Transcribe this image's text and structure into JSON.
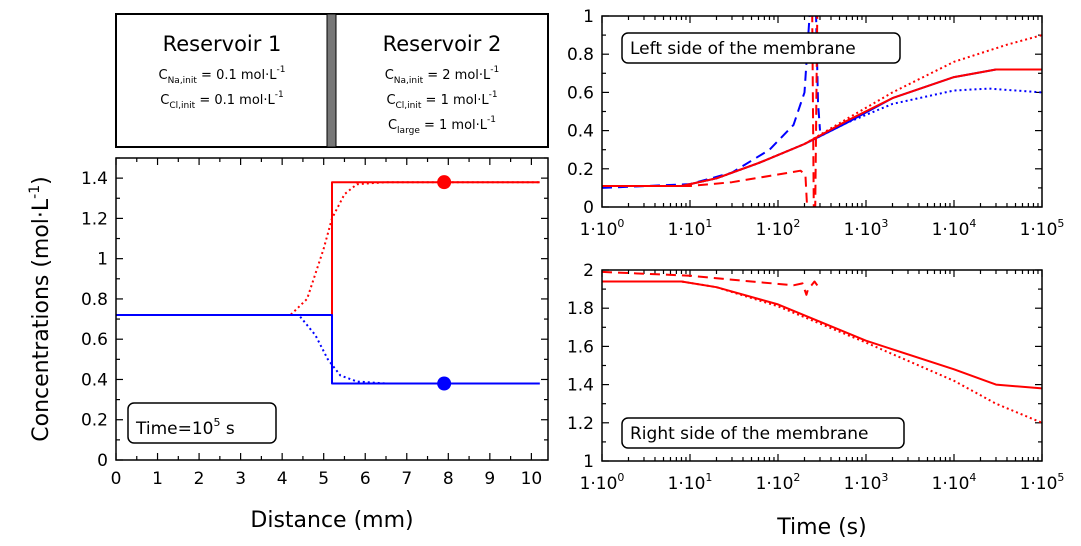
{
  "reservoir1": {
    "title": "Reservoir 1",
    "lines": [
      {
        "base": "C",
        "sub": "Na,init",
        "rest": " = 0.1 mol·L",
        "sup": "-1"
      },
      {
        "base": "C",
        "sub": "Cl,init",
        "rest": " = 0.1 mol·L",
        "sup": "-1"
      }
    ]
  },
  "reservoir2": {
    "title": "Reservoir 2",
    "lines": [
      {
        "base": "C",
        "sub": "Na,init",
        "rest": " = 2 mol·L",
        "sup": "-1"
      },
      {
        "base": "C",
        "sub": "Cl,init",
        "rest": " = 1 mol·L",
        "sup": "-1"
      },
      {
        "base": "C",
        "sub": "large",
        "rest": " = 1 mol·L",
        "sup": "-1"
      }
    ]
  },
  "chart_data": [
    {
      "type": "line",
      "id": "profile",
      "xlabel": "Distance (mm)",
      "ylabel": "Concentrations (mol·L",
      "ylabel_sup": "-1",
      "ylabel_close": ")",
      "xlim": [
        0,
        10.4
      ],
      "ylim": [
        0,
        1.5
      ],
      "xticks": [
        0,
        1,
        2,
        3,
        4,
        5,
        6,
        7,
        8,
        9,
        10
      ],
      "yticks": [
        0,
        0.2,
        0.4,
        0.6,
        0.8,
        1,
        1.2,
        1.4
      ],
      "ytick_labels": [
        "0",
        "0.2",
        "0.4",
        "0.6",
        "0.8",
        "1",
        "1.2",
        "1.4"
      ],
      "annotation": {
        "text": "Time=10",
        "sup": "5",
        "tail": " s"
      },
      "series": [
        {
          "color": "#ff0000",
          "style": "solid",
          "points": [
            [
              0,
              0.72
            ],
            [
              5.2,
              0.72
            ],
            [
              5.2,
              1.38
            ],
            [
              10.2,
              1.38
            ]
          ]
        },
        {
          "color": "#ff0000",
          "style": "dotted",
          "points": [
            [
              0,
              0.72
            ],
            [
              4.2,
              0.72
            ],
            [
              4.6,
              0.8
            ],
            [
              5.0,
              1.05
            ],
            [
              5.2,
              1.2
            ],
            [
              5.5,
              1.32
            ],
            [
              5.8,
              1.37
            ],
            [
              6.5,
              1.38
            ],
            [
              10.2,
              1.38
            ]
          ]
        },
        {
          "color": "#0000ff",
          "style": "solid",
          "points": [
            [
              0,
              0.72
            ],
            [
              5.2,
              0.72
            ],
            [
              5.2,
              0.38
            ],
            [
              10.2,
              0.38
            ]
          ]
        },
        {
          "color": "#0000ff",
          "style": "dotted",
          "points": [
            [
              0,
              0.72
            ],
            [
              4.4,
              0.72
            ],
            [
              4.8,
              0.62
            ],
            [
              5.1,
              0.5
            ],
            [
              5.4,
              0.42
            ],
            [
              5.8,
              0.39
            ],
            [
              6.5,
              0.38
            ],
            [
              10.2,
              0.38
            ]
          ]
        }
      ],
      "markers": [
        {
          "x": 7.9,
          "y": 1.38,
          "color": "#ff0000"
        },
        {
          "x": 7.9,
          "y": 0.38,
          "color": "#0000ff"
        }
      ]
    },
    {
      "type": "line",
      "id": "left",
      "x_scale": "log",
      "xlim": [
        1,
        100000
      ],
      "ylim": [
        0,
        1
      ],
      "xticks": [
        1,
        10,
        100,
        1000,
        10000,
        100000
      ],
      "xtick_labels": [
        {
          "base": "1·10",
          "sup": "0"
        },
        {
          "base": "1·10",
          "sup": "1"
        },
        {
          "base": "1·10",
          "sup": "2"
        },
        {
          "base": "1·10",
          "sup": "3"
        },
        {
          "base": "1·10",
          "sup": "4"
        },
        {
          "base": "1·10",
          "sup": "5"
        }
      ],
      "yticks": [
        0,
        0.2,
        0.4,
        0.6,
        0.8,
        1
      ],
      "ytick_labels": [
        "0",
        "0.2",
        "0.4",
        "0.6",
        "0.8",
        "1"
      ],
      "annotation": {
        "text": "Left side of the membrane"
      },
      "series": [
        {
          "color": "#0000ff",
          "style": "solid",
          "points": [
            [
              1,
              0.11
            ],
            [
              8,
              0.11
            ],
            [
              20,
              0.15
            ],
            [
              60,
              0.23
            ],
            [
              200,
              0.33
            ],
            [
              600,
              0.44
            ],
            [
              2000,
              0.57
            ],
            [
              10000,
              0.68
            ],
            [
              30000,
              0.72
            ],
            [
              100000,
              0.72
            ]
          ]
        },
        {
          "color": "#0000ff",
          "style": "dotted",
          "points": [
            [
              1,
              0.11
            ],
            [
              8,
              0.11
            ],
            [
              20,
              0.15
            ],
            [
              60,
              0.23
            ],
            [
              200,
              0.33
            ],
            [
              600,
              0.44
            ],
            [
              2000,
              0.54
            ],
            [
              10000,
              0.61
            ],
            [
              25000,
              0.62
            ],
            [
              100000,
              0.6
            ]
          ]
        },
        {
          "color": "#0000ff",
          "style": "dashed",
          "points": [
            [
              1,
              0.1
            ],
            [
              10,
              0.12
            ],
            [
              30,
              0.18
            ],
            [
              80,
              0.3
            ],
            [
              150,
              0.43
            ],
            [
              200,
              0.6
            ],
            [
              230,
              1.02
            ]
          ],
          "extra": [
            [
              [
                270,
                1.02
              ],
              [
                285,
                0.55
              ],
              [
                300,
                0.4
              ]
            ]
          ]
        },
        {
          "color": "#ff0000",
          "style": "solid",
          "points": [
            [
              1,
              0.11
            ],
            [
              8,
              0.11
            ],
            [
              20,
              0.15
            ],
            [
              60,
              0.23
            ],
            [
              200,
              0.33
            ],
            [
              600,
              0.45
            ],
            [
              2000,
              0.57
            ],
            [
              10000,
              0.68
            ],
            [
              30000,
              0.72
            ],
            [
              100000,
              0.72
            ]
          ]
        },
        {
          "color": "#ff0000",
          "style": "dotted",
          "points": [
            [
              1,
              0.11
            ],
            [
              8,
              0.11
            ],
            [
              20,
              0.15
            ],
            [
              60,
              0.23
            ],
            [
              200,
              0.33
            ],
            [
              600,
              0.46
            ],
            [
              2000,
              0.6
            ],
            [
              10000,
              0.76
            ],
            [
              40000,
              0.85
            ],
            [
              100000,
              0.9
            ]
          ]
        },
        {
          "color": "#ff0000",
          "style": "dashed",
          "points": [
            [
              1,
              0.11
            ],
            [
              10,
              0.11
            ],
            [
              30,
              0.13
            ],
            [
              100,
              0.17
            ],
            [
              180,
              0.19
            ],
            [
              205,
              0.17
            ],
            [
              215,
              -0.02
            ]
          ],
          "extra": [
            [
              [
                245,
                1.02
              ],
              [
                255,
                -0.02
              ]
            ],
            [
              [
                265,
                -0.02
              ],
              [
                280,
                1.02
              ]
            ]
          ]
        }
      ]
    },
    {
      "type": "line",
      "id": "right",
      "x_scale": "log",
      "xlabel": "Time (s)",
      "xlim": [
        1,
        100000
      ],
      "ylim": [
        1,
        2
      ],
      "xticks": [
        1,
        10,
        100,
        1000,
        10000,
        100000
      ],
      "xtick_labels": [
        {
          "base": "1·10",
          "sup": "0"
        },
        {
          "base": "1·10",
          "sup": "1"
        },
        {
          "base": "1·10",
          "sup": "2"
        },
        {
          "base": "1·10",
          "sup": "3"
        },
        {
          "base": "1·10",
          "sup": "4"
        },
        {
          "base": "1·10",
          "sup": "5"
        }
      ],
      "yticks": [
        1,
        1.2,
        1.4,
        1.6,
        1.8,
        2
      ],
      "ytick_labels": [
        "1",
        "1.2",
        "1.4",
        "1.6",
        "1.8",
        "2"
      ],
      "annotation": {
        "text": "Right side of the membrane"
      },
      "series": [
        {
          "color": "#ff0000",
          "style": "solid",
          "points": [
            [
              1,
              1.94
            ],
            [
              8,
              1.94
            ],
            [
              20,
              1.91
            ],
            [
              100,
              1.82
            ],
            [
              1000,
              1.63
            ],
            [
              10000,
              1.48
            ],
            [
              30000,
              1.4
            ],
            [
              100000,
              1.38
            ]
          ]
        },
        {
          "color": "#ff0000",
          "style": "dotted",
          "points": [
            [
              1,
              1.94
            ],
            [
              8,
              1.94
            ],
            [
              20,
              1.91
            ],
            [
              100,
              1.81
            ],
            [
              1000,
              1.62
            ],
            [
              10000,
              1.42
            ],
            [
              30000,
              1.3
            ],
            [
              100000,
              1.2
            ]
          ]
        },
        {
          "color": "#ff0000",
          "style": "dashed",
          "points": [
            [
              1,
              1.99
            ],
            [
              10,
              1.97
            ],
            [
              50,
              1.94
            ],
            [
              150,
              1.92
            ],
            [
              190,
              1.93
            ],
            [
              210,
              1.87
            ],
            [
              220,
              1.9
            ],
            [
              240,
              1.92
            ],
            [
              260,
              1.94
            ],
            [
              300,
              1.9
            ]
          ]
        }
      ]
    }
  ]
}
